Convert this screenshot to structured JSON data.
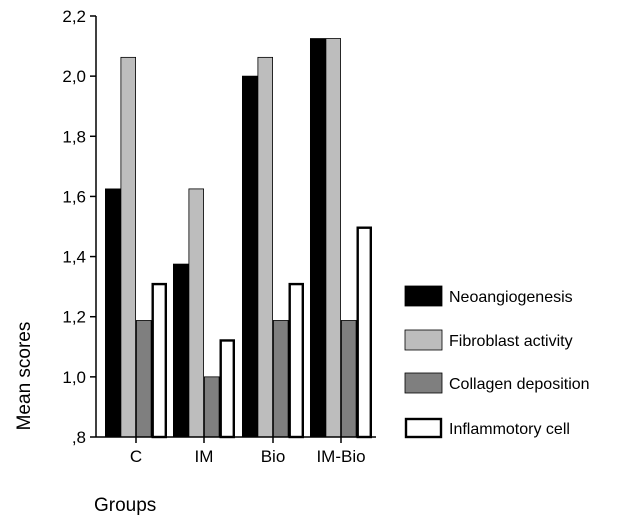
{
  "chart_data": {
    "type": "bar",
    "title": "",
    "xlabel": "Groups",
    "ylabel": "Mean scores",
    "categories": [
      "C",
      "IM",
      "Bio",
      "IM-Bio"
    ],
    "series": [
      {
        "name": "Neoangiogenesis",
        "values": [
          1.625,
          1.375,
          2.0,
          2.125
        ],
        "color": "#000000"
      },
      {
        "name": "Fibroblast activity",
        "values": [
          2.0625,
          1.625,
          2.0625,
          2.125
        ],
        "color": "#bdbdbd"
      },
      {
        "name": "Collagen deposition",
        "values": [
          1.1875,
          1.0,
          1.1875,
          1.1875
        ],
        "color": "#7f7f7f"
      },
      {
        "name": "Inflammotory cell",
        "values": [
          1.3125,
          1.125,
          1.3125,
          1.5
        ],
        "color": "#ffffff"
      }
    ],
    "ylim": [
      0.8,
      2.2
    ],
    "yticks": [
      0.8,
      1.0,
      1.2,
      1.4,
      1.6,
      1.8,
      2.0,
      2.2
    ],
    "ytick_labels": [
      ",8",
      "1,0",
      "1,2",
      "1,4",
      "1,6",
      "1,8",
      "2,0",
      "2,2"
    ],
    "grid": false,
    "legend": "right"
  }
}
